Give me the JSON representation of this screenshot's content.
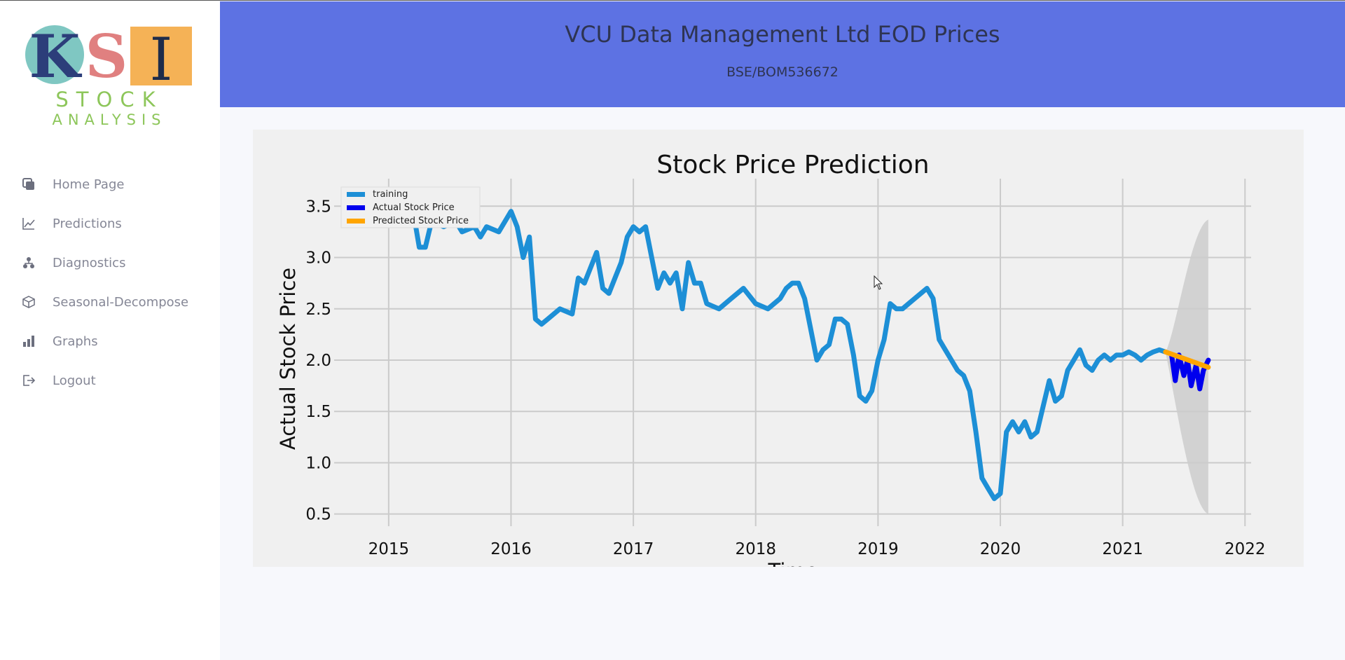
{
  "sidebar": {
    "logo": {
      "letters": [
        "K",
        "S",
        "I"
      ],
      "word1": "STOCK",
      "word2": "ANALYSIS"
    },
    "items": [
      {
        "label": "Home Page",
        "icon": "copy-icon"
      },
      {
        "label": "Predictions",
        "icon": "line-chart-icon"
      },
      {
        "label": "Diagnostics",
        "icon": "sitemap-icon"
      },
      {
        "label": "Seasonal-Decompose",
        "icon": "cube-icon"
      },
      {
        "label": "Graphs",
        "icon": "bar-chart-icon"
      },
      {
        "label": "Logout",
        "icon": "logout-icon"
      }
    ]
  },
  "header": {
    "title": "VCU Data Management Ltd EOD Prices",
    "subtitle": "BSE/BOM536672"
  },
  "colors": {
    "header_bg": "#5d72e3",
    "training": "#1d8fd6",
    "actual": "#0000ee",
    "predicted": "#ffa500",
    "band": "#cccccc"
  },
  "chart_data": {
    "type": "line",
    "title": "Stock Price Prediction",
    "xlabel": "Time",
    "ylabel": "Actual Stock Price",
    "xlim": [
      2014.6,
      2022.05
    ],
    "ylim": [
      0.45,
      3.7
    ],
    "xticks": [
      2015,
      2016,
      2017,
      2018,
      2019,
      2020,
      2021,
      2022
    ],
    "yticks": [
      "0.5",
      "1.0",
      "1.5",
      "2.0",
      "2.5",
      "3.0",
      "3.5"
    ],
    "grid": true,
    "legend_position": "top-left",
    "series": [
      {
        "name": "training",
        "x": [
          2015.0,
          2015.1,
          2015.2,
          2015.25,
          2015.3,
          2015.35,
          2015.45,
          2015.55,
          2015.6,
          2015.7,
          2015.75,
          2015.8,
          2015.9,
          2016.0,
          2016.05,
          2016.1,
          2016.15,
          2016.2,
          2016.25,
          2016.3,
          2016.4,
          2016.5,
          2016.55,
          2016.6,
          2016.7,
          2016.75,
          2016.8,
          2016.85,
          2016.9,
          2016.95,
          2017.0,
          2017.05,
          2017.1,
          2017.15,
          2017.2,
          2017.25,
          2017.3,
          2017.35,
          2017.4,
          2017.45,
          2017.5,
          2017.55,
          2017.6,
          2017.7,
          2017.8,
          2017.9,
          2018.0,
          2018.1,
          2018.2,
          2018.25,
          2018.3,
          2018.35,
          2018.4,
          2018.5,
          2018.55,
          2018.6,
          2018.65,
          2018.7,
          2018.75,
          2018.8,
          2018.85,
          2018.9,
          2018.95,
          2019.0,
          2019.05,
          2019.1,
          2019.15,
          2019.2,
          2019.25,
          2019.3,
          2019.35,
          2019.4,
          2019.45,
          2019.5,
          2019.55,
          2019.6,
          2019.65,
          2019.7,
          2019.75,
          2019.8,
          2019.85,
          2019.9,
          2019.95,
          2020.0,
          2020.05,
          2020.1,
          2020.15,
          2020.2,
          2020.25,
          2020.3,
          2020.35,
          2020.4,
          2020.45,
          2020.5,
          2020.55,
          2020.6,
          2020.65,
          2020.7,
          2020.75,
          2020.8,
          2020.85,
          2020.9,
          2020.95,
          2021.0,
          2021.05,
          2021.1,
          2021.15,
          2021.2,
          2021.25,
          2021.3,
          2021.35
        ],
        "values": [
          3.4,
          3.35,
          3.45,
          3.1,
          3.1,
          3.35,
          3.3,
          3.35,
          3.25,
          3.3,
          3.2,
          3.3,
          3.25,
          3.45,
          3.3,
          3.0,
          3.2,
          2.4,
          2.35,
          2.4,
          2.5,
          2.45,
          2.8,
          2.75,
          3.05,
          2.7,
          2.65,
          2.8,
          2.95,
          3.2,
          3.3,
          3.25,
          3.3,
          3.0,
          2.7,
          2.85,
          2.75,
          2.85,
          2.5,
          2.95,
          2.75,
          2.75,
          2.55,
          2.5,
          2.6,
          2.7,
          2.55,
          2.5,
          2.6,
          2.7,
          2.75,
          2.75,
          2.6,
          2.0,
          2.1,
          2.15,
          2.4,
          2.4,
          2.35,
          2.05,
          1.65,
          1.6,
          1.7,
          2.0,
          2.2,
          2.55,
          2.5,
          2.5,
          2.55,
          2.6,
          2.65,
          2.7,
          2.6,
          2.2,
          2.1,
          2.0,
          1.9,
          1.85,
          1.7,
          1.3,
          0.85,
          0.75,
          0.65,
          0.7,
          1.3,
          1.4,
          1.3,
          1.4,
          1.25,
          1.3,
          1.55,
          1.8,
          1.6,
          1.65,
          1.9,
          2.0,
          2.1,
          1.95,
          1.9,
          2.0,
          2.05,
          2.0,
          2.05,
          2.05,
          2.08,
          2.05,
          2.0,
          2.05,
          2.08,
          2.1,
          2.08
        ]
      },
      {
        "name": "Actual Stock Price",
        "x": [
          2021.4,
          2021.43,
          2021.46,
          2021.5,
          2021.53,
          2021.56,
          2021.6,
          2021.63,
          2021.66,
          2021.7
        ],
        "values": [
          2.05,
          1.8,
          2.05,
          1.85,
          2.0,
          1.75,
          1.95,
          1.72,
          1.9,
          2.0
        ]
      },
      {
        "name": "Predicted Stock Price",
        "x": [
          2021.35,
          2021.7
        ],
        "values": [
          2.08,
          1.93
        ]
      }
    ],
    "confidence_band": {
      "x": [
        2021.35,
        2021.7
      ],
      "upper": [
        2.1,
        3.37
      ],
      "lower": [
        2.05,
        0.5
      ]
    }
  }
}
